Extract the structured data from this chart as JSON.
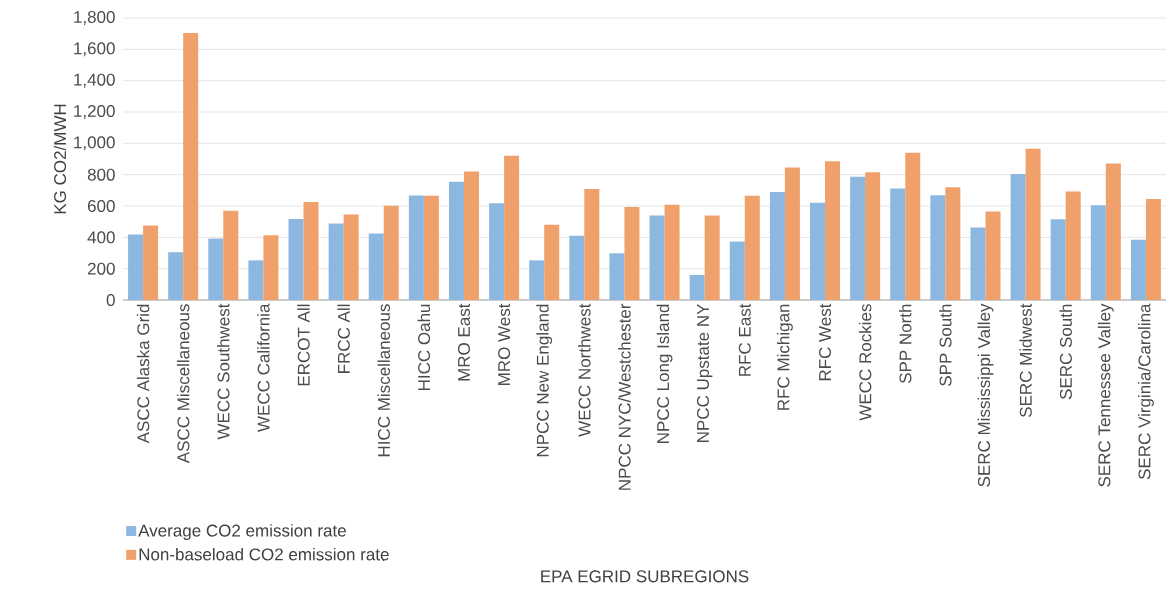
{
  "chart_data": {
    "type": "bar",
    "xlabel": "EPA EGRID SUBREGIONS",
    "ylabel": "KG CO2/MWH",
    "categories": [
      "ASCC Alaska Grid",
      "ASCC Miscellaneous",
      "WECC Southwest",
      "WECC California",
      "ERCOT All",
      "FRCC All",
      "HICC Miscellaneous",
      "HICC Oahu",
      "MRO East",
      "MRO West",
      "NPCC New England",
      "WECC Northwest",
      "NPCC NYC/Westchester",
      "NPCC Long Island",
      "NPCC Upstate NY",
      "RFC East",
      "RFC Michigan",
      "RFC West",
      "WECC Rockies",
      "SPP North",
      "SPP South",
      "SERC Mississippi Valley",
      "SERC Midwest",
      "SERC South",
      "SERC Tennessee Valley",
      "SERC Virginia/Carolina"
    ],
    "series": [
      {
        "name": "Average CO2 emission rate",
        "color": "#8cb7e0",
        "values": [
          418,
          305,
          392,
          253,
          517,
          488,
          425,
          667,
          755,
          618,
          253,
          410,
          298,
          540,
          160,
          373,
          690,
          620,
          787,
          712,
          668,
          462,
          805,
          515,
          605,
          385
        ]
      },
      {
        "name": "Non-baseload CO2 emission rate",
        "color": "#f0a06a",
        "values": [
          475,
          1705,
          570,
          413,
          626,
          545,
          602,
          665,
          820,
          920,
          480,
          708,
          593,
          608,
          540,
          665,
          845,
          885,
          815,
          940,
          720,
          565,
          965,
          692,
          872,
          645
        ]
      }
    ],
    "ylim": [
      0,
      1800
    ],
    "yticks": [
      0,
      200,
      400,
      600,
      800,
      {
        "value": 1000,
        "label": "1,000"
      },
      {
        "value": 1200,
        "label": "1,200"
      },
      {
        "value": 1400,
        "label": "1,400"
      },
      {
        "value": 1600,
        "label": "1,600"
      },
      {
        "value": 1800,
        "label": "1,800"
      }
    ],
    "grid": "y",
    "legend": "bottom left"
  }
}
